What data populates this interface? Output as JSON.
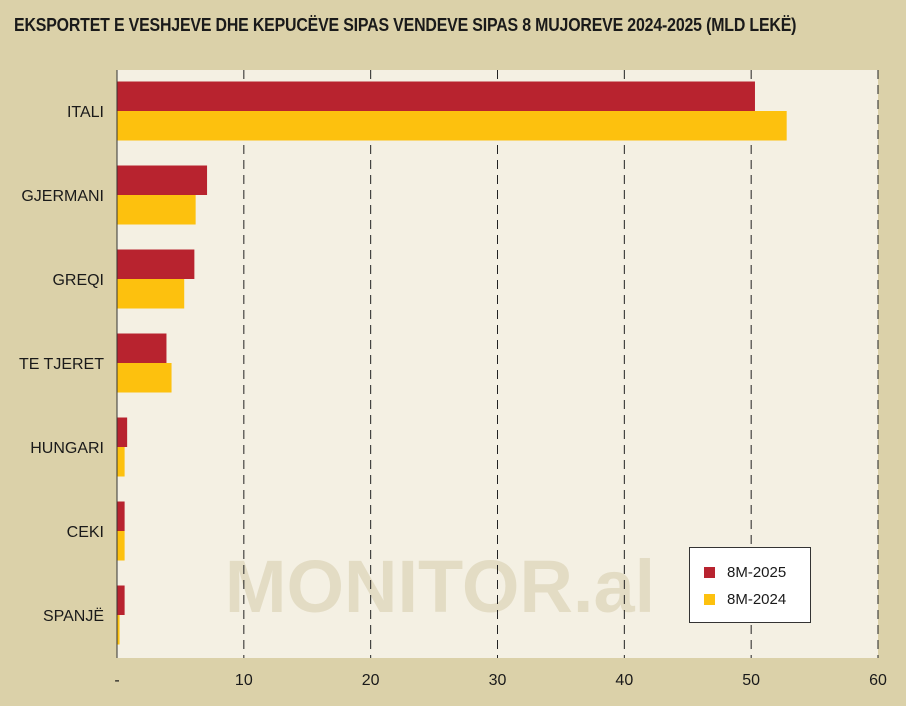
{
  "title": "EKSPORTET E VESHJEVE DHE KEPUCËVE SIPAS VENDEVE SIPAS 8 MUJOREVE 2024-2025 (MLD LEKË)",
  "watermark": "MONITOR.al",
  "colors": {
    "series_2025": "#b8232f",
    "series_2024": "#fdc10e",
    "background": "#dbd1a9",
    "plot_background": "#f4f0e3"
  },
  "chart_data": {
    "type": "bar",
    "orientation": "horizontal",
    "title": "EKSPORTET E VESHJEVE DHE KEPUCËVE SIPAS VENDEVE SIPAS 8 MUJOREVE 2024-2025 (MLD LEKË)",
    "categories": [
      "ITALI",
      "GJERMANI",
      "GREQI",
      "TE TJERET",
      "HUNGARI",
      "CEKI",
      "SPANJË"
    ],
    "series": [
      {
        "name": "8M-2025",
        "values": [
          50.3,
          7.1,
          6.1,
          3.9,
          0.8,
          0.6,
          0.6
        ]
      },
      {
        "name": "8M-2024",
        "values": [
          52.8,
          6.2,
          5.3,
          4.3,
          0.6,
          0.6,
          0.2
        ]
      }
    ],
    "xlim": [
      0,
      60
    ],
    "x_ticks": [
      0,
      10,
      20,
      30,
      40,
      50,
      60
    ],
    "x_tick_labels": [
      "-",
      "10",
      "20",
      "30",
      "40",
      "50",
      "60"
    ],
    "grid": "vertical dashed",
    "legend": "bottom-right"
  }
}
